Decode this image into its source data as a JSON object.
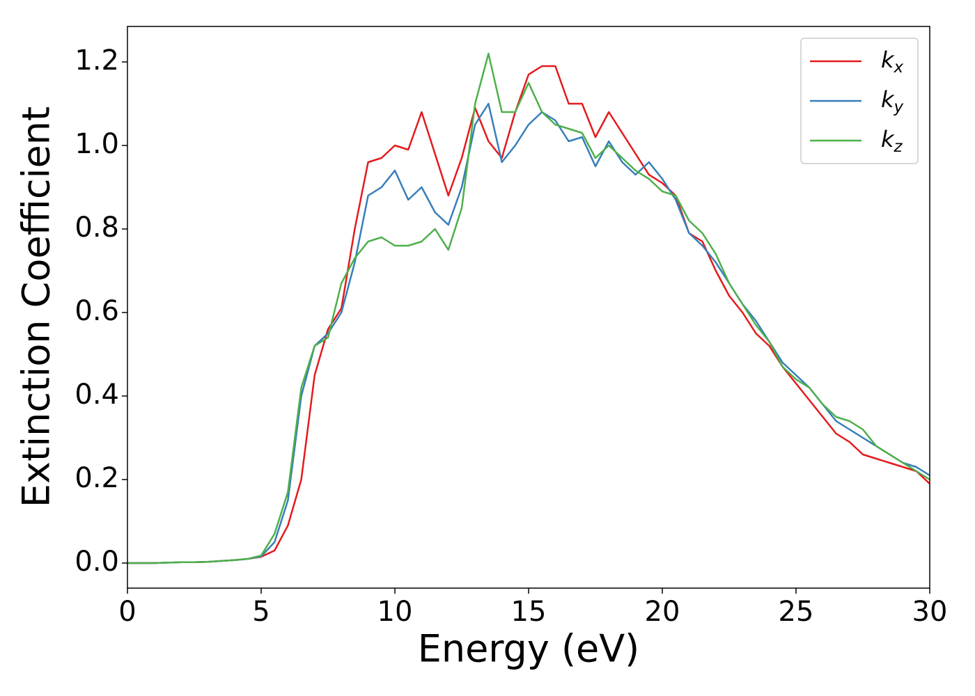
{
  "chart_data": {
    "type": "line",
    "xlabel": "Energy (eV)",
    "ylabel": "Extinction Coefficient",
    "x": [
      0,
      0.5,
      1,
      1.5,
      2,
      2.5,
      3,
      3.5,
      4,
      4.5,
      5,
      5.5,
      6,
      6.5,
      7,
      7.5,
      8,
      8.5,
      9,
      9.5,
      10,
      10.5,
      11,
      11.5,
      12,
      12.5,
      13,
      13.5,
      14,
      14.5,
      15,
      15.5,
      16,
      16.5,
      17,
      17.5,
      18,
      18.5,
      19,
      19.5,
      20,
      20.5,
      21,
      21.5,
      22,
      22.5,
      23,
      23.5,
      24,
      24.5,
      25,
      25.5,
      26,
      26.5,
      27,
      27.5,
      28,
      28.5,
      29,
      29.5,
      30
    ],
    "series": [
      {
        "name": "kx",
        "color": "#e41a1c",
        "values": [
          0,
          0,
          0,
          0.001,
          0.002,
          0.002,
          0.003,
          0.005,
          0.007,
          0.01,
          0.015,
          0.03,
          0.09,
          0.2,
          0.45,
          0.56,
          0.61,
          0.8,
          0.96,
          0.97,
          1.0,
          0.99,
          1.08,
          0.98,
          0.88,
          0.97,
          1.09,
          1.01,
          0.97,
          1.08,
          1.17,
          1.19,
          1.19,
          1.1,
          1.1,
          1.02,
          1.08,
          1.03,
          0.98,
          0.93,
          0.91,
          0.88,
          0.79,
          0.77,
          0.7,
          0.64,
          0.6,
          0.55,
          0.52,
          0.47,
          0.43,
          0.39,
          0.35,
          0.31,
          0.29,
          0.26,
          0.25,
          0.24,
          0.23,
          0.22,
          0.19
        ]
      },
      {
        "name": "ky",
        "color": "#377eb8",
        "values": [
          0,
          0,
          0,
          0.001,
          0.002,
          0.002,
          0.003,
          0.005,
          0.007,
          0.01,
          0.016,
          0.05,
          0.15,
          0.4,
          0.52,
          0.55,
          0.6,
          0.72,
          0.88,
          0.9,
          0.94,
          0.87,
          0.9,
          0.84,
          0.81,
          0.9,
          1.05,
          1.1,
          0.96,
          1.0,
          1.05,
          1.08,
          1.06,
          1.01,
          1.02,
          0.95,
          1.01,
          0.96,
          0.93,
          0.96,
          0.92,
          0.87,
          0.79,
          0.76,
          0.72,
          0.67,
          0.62,
          0.58,
          0.53,
          0.48,
          0.45,
          0.42,
          0.38,
          0.34,
          0.32,
          0.3,
          0.28,
          0.26,
          0.24,
          0.23,
          0.21
        ]
      },
      {
        "name": "kz",
        "color": "#4daf4a",
        "values": [
          0,
          0,
          0,
          0.001,
          0.002,
          0.002,
          0.003,
          0.005,
          0.007,
          0.01,
          0.018,
          0.07,
          0.17,
          0.42,
          0.52,
          0.54,
          0.67,
          0.73,
          0.77,
          0.78,
          0.76,
          0.76,
          0.77,
          0.8,
          0.75,
          0.85,
          1.1,
          1.22,
          1.08,
          1.08,
          1.15,
          1.08,
          1.05,
          1.04,
          1.03,
          0.97,
          1.0,
          0.97,
          0.94,
          0.92,
          0.89,
          0.88,
          0.82,
          0.79,
          0.74,
          0.67,
          0.62,
          0.57,
          0.53,
          0.47,
          0.44,
          0.42,
          0.38,
          0.35,
          0.34,
          0.32,
          0.28,
          0.26,
          0.24,
          0.22,
          0.2
        ]
      }
    ],
    "xlim": [
      0,
      30
    ],
    "xticks": [
      0,
      5,
      10,
      15,
      20,
      25,
      30
    ],
    "ylim": [
      -0.06,
      1.285
    ],
    "yticks": [
      {
        "value": 0,
        "label": "0.0"
      },
      0.2,
      0.4,
      0.6,
      0.8,
      {
        "value": 1,
        "label": "1.0"
      },
      1.2
    ],
    "legend": "upper right"
  }
}
